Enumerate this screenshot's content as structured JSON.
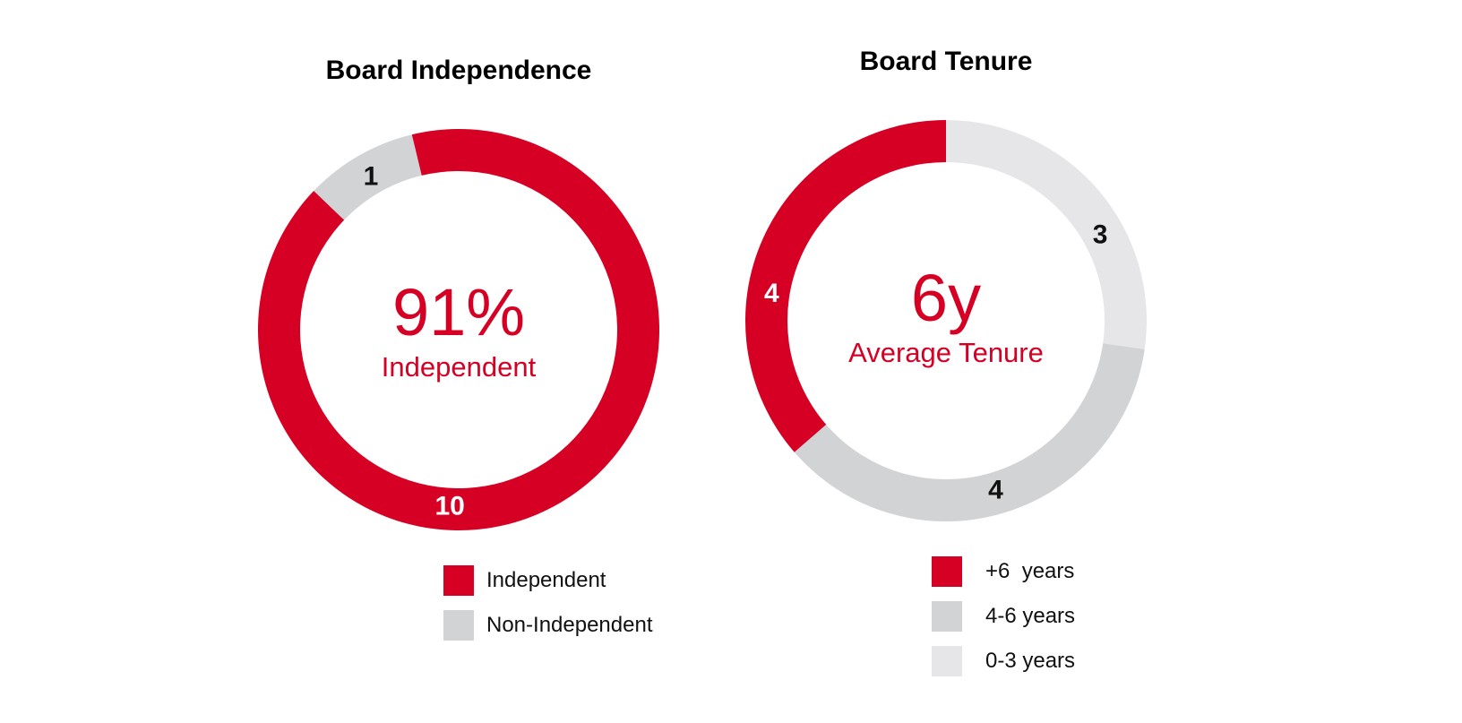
{
  "chart_data": [
    {
      "type": "donut",
      "title": "Board Independence",
      "center_value": "91%",
      "center_label": "Independent",
      "slices": [
        {
          "name": "Independent",
          "value": 10,
          "label": "10",
          "color": "#d50023",
          "label_color": "#ffffff"
        },
        {
          "name": "Non-Independent",
          "value": 1,
          "label": "1",
          "color": "#d2d3d5",
          "label_color": "#111111"
        }
      ],
      "legend": [
        {
          "label": "Independent",
          "color": "#d50023"
        },
        {
          "label": "Non-Independent",
          "color": "#d2d3d5"
        }
      ]
    },
    {
      "type": "donut",
      "title": "Board Tenure",
      "center_value": "6y",
      "center_label": "Average Tenure",
      "slices": [
        {
          "name": "0-3 years",
          "value": 3,
          "label": "3",
          "color": "#e6e6e8",
          "label_color": "#111111"
        },
        {
          "name": "4-6 years",
          "value": 4,
          "label": "4",
          "color": "#d2d3d5",
          "label_color": "#111111"
        },
        {
          "name": "+6  years",
          "value": 4,
          "label": "4",
          "color": "#d50023",
          "label_color": "#ffffff"
        }
      ],
      "legend": [
        {
          "label": "+6  years",
          "color": "#d50023"
        },
        {
          "label": "4-6 years",
          "color": "#d2d3d5"
        },
        {
          "label": "0-3 years",
          "color": "#e6e6e8"
        }
      ]
    }
  ]
}
